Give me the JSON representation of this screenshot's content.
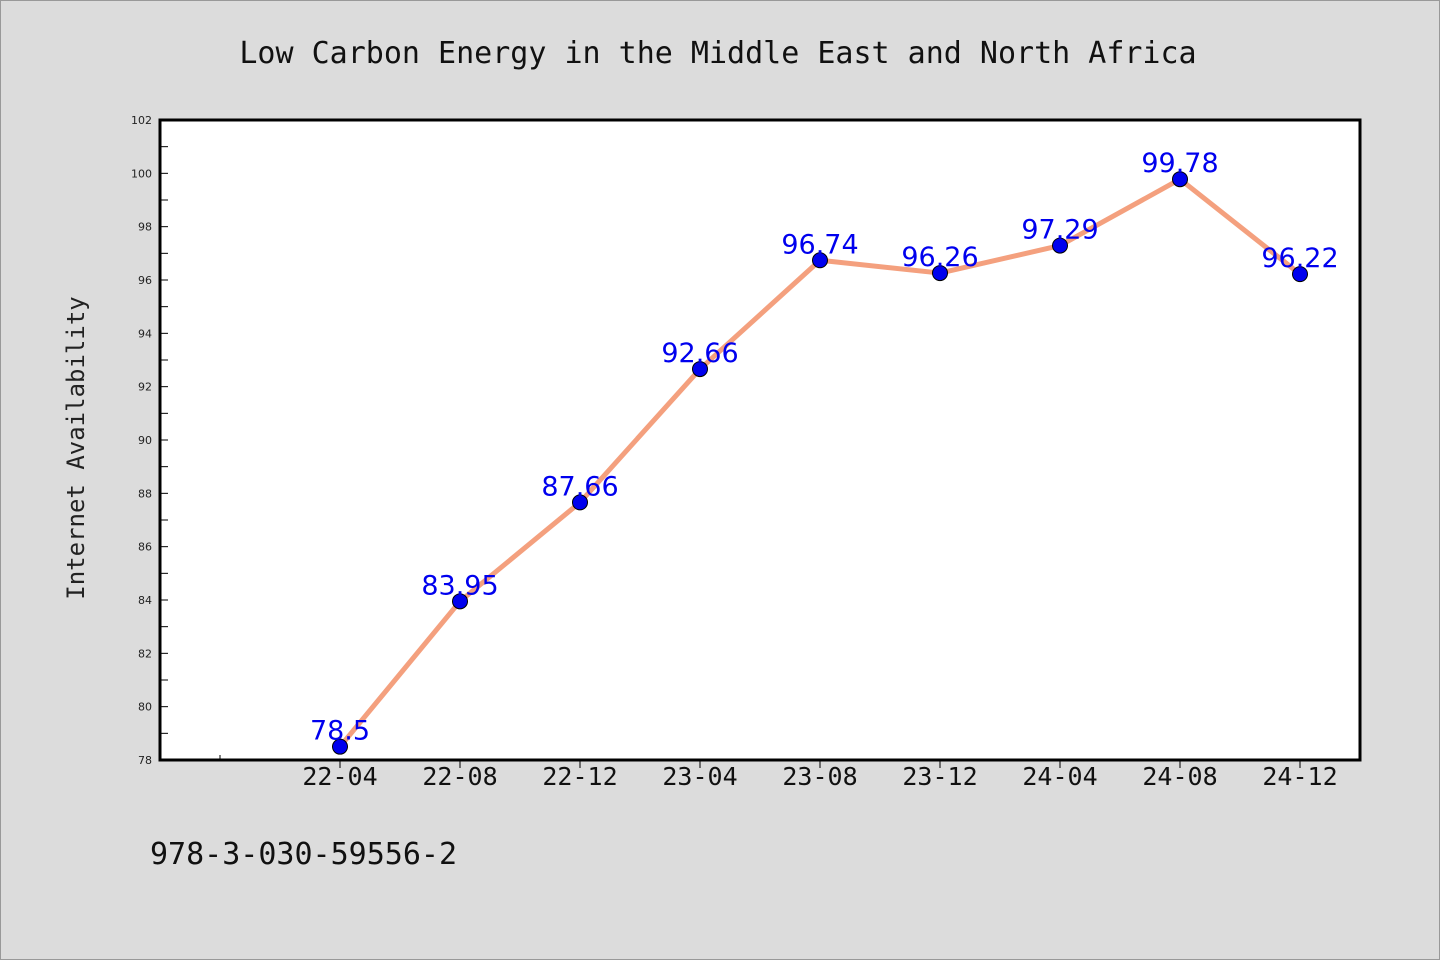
{
  "chart_data": {
    "type": "line",
    "title": "Low Carbon Energy in the Middle East and North Africa",
    "xlabel": "",
    "ylabel": "Internet Availability",
    "categories": [
      "22-04",
      "22-08",
      "22-12",
      "23-04",
      "23-08",
      "23-12",
      "24-04",
      "24-08",
      "24-12"
    ],
    "series": [
      {
        "values": [
          78.5,
          83.95,
          87.66,
          92.66,
          96.74,
          96.26,
          97.29,
          99.78,
          96.22
        ],
        "data_labels": [
          "78.5",
          "83.95",
          "87.66",
          "92.66",
          "96.74",
          "96.26",
          "97.29",
          "99.78",
          "96.22"
        ],
        "line_color": "#f4a07e",
        "marker_color": "#0000ee",
        "label_color": "#0000ee"
      }
    ],
    "ylim": [
      78,
      102
    ],
    "yticks": [
      78,
      80,
      82,
      84,
      86,
      88,
      90,
      92,
      94,
      96,
      98,
      100,
      102
    ],
    "grid": false,
    "legend": "none"
  },
  "footnote": "978-3-030-59556-2"
}
